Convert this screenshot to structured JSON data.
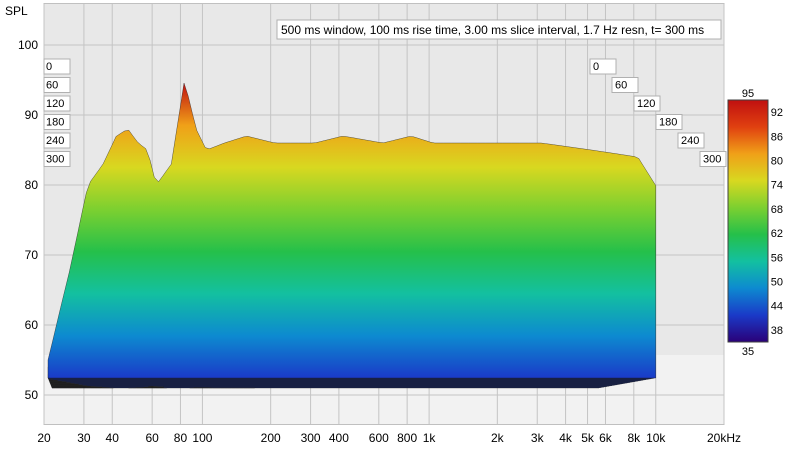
{
  "chart_data": {
    "type": "area",
    "subtype": "waterfall-3d",
    "title": "500 ms window, 100 ms rise time, 3.00 ms slice interval, 1.7 Hz resn, t= 300 ms",
    "ylabel": "SPL",
    "xlabel_unit": "kHz",
    "x_scale": "log",
    "xlim": [
      20,
      20000
    ],
    "ylim": [
      45,
      103
    ],
    "x_tick_labels": [
      "20",
      "30",
      "40",
      "60",
      "80",
      "100",
      "200",
      "300",
      "400",
      "600",
      "800",
      "1k",
      "2k",
      "3k",
      "4k",
      "5k",
      "6k",
      "8k",
      "10k",
      "20kHz"
    ],
    "x_tick_values": [
      20,
      30,
      40,
      60,
      80,
      100,
      200,
      300,
      400,
      600,
      800,
      1000,
      2000,
      3000,
      4000,
      5000,
      6000,
      8000,
      10000,
      20000
    ],
    "y_ticks": [
      50,
      60,
      70,
      80,
      90,
      100
    ],
    "time_ticks_ms": [
      "0",
      "60",
      "120",
      "180",
      "240",
      "300"
    ],
    "colorbar": {
      "min": 35,
      "max": 95,
      "tick_labels": [
        "92",
        "86",
        "80",
        "74",
        "68",
        "62",
        "56",
        "50",
        "44",
        "38"
      ],
      "colors": [
        "#2a0078",
        "#1a3ac8",
        "#0d8ad0",
        "#13c0a0",
        "#25c04a",
        "#7cd030",
        "#d8d820",
        "#f0a018",
        "#e04010",
        "#c01010"
      ]
    },
    "series": [
      {
        "slice_ms": 0,
        "x": [
          20,
          25,
          30,
          35,
          40,
          45,
          50,
          55,
          60,
          70,
          80,
          90,
          100,
          120,
          150,
          200,
          300,
          400,
          600,
          800,
          1000,
          2000,
          3000,
          5000,
          8000,
          10000
        ],
        "values": [
          55,
          68,
          80,
          83,
          87,
          88,
          86,
          85,
          80,
          83,
          95,
          88,
          85,
          86,
          87,
          86,
          86,
          87,
          86,
          87,
          86,
          86,
          86,
          85,
          84,
          79
        ]
      }
    ]
  }
}
